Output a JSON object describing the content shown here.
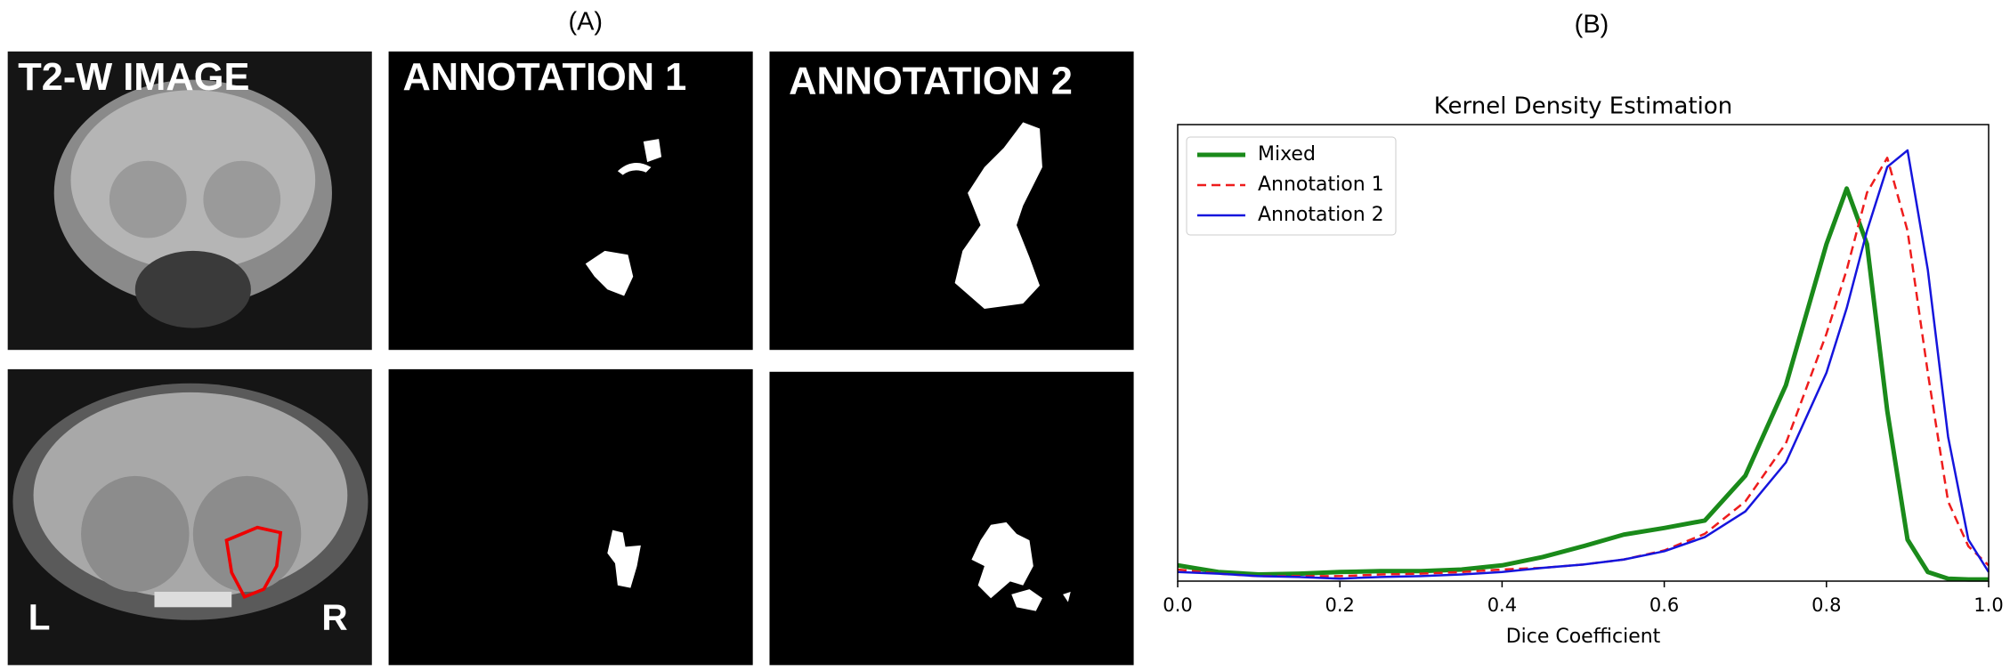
{
  "panel_a": {
    "label": "(A)",
    "columns": [
      "T2-W IMAGE",
      "ANNOTATION 1",
      "ANNOTATION 2"
    ],
    "orientation": [
      "L",
      "R"
    ]
  },
  "panel_b_label": "(B)",
  "chart_data": {
    "type": "line",
    "title": "Kernel Density Estimation",
    "x_label": "Dice Coefficient",
    "x": [
      0,
      0.05,
      0.1,
      0.15,
      0.2,
      0.25,
      0.3,
      0.35,
      0.4,
      0.45,
      0.5,
      0.55,
      0.6,
      0.65,
      0.7,
      0.75,
      0.8,
      0.825,
      0.85,
      0.875,
      0.9,
      0.925,
      0.95,
      0.975,
      1.0
    ],
    "series": [
      {
        "name": "Mixed",
        "color": "#1a8a1a",
        "linewidth": 5,
        "linestyle": "solid",
        "values": [
          0.19,
          0.11,
          0.08,
          0.09,
          0.11,
          0.12,
          0.12,
          0.14,
          0.19,
          0.29,
          0.42,
          0.56,
          0.64,
          0.73,
          1.27,
          2.36,
          4.06,
          4.73,
          4.06,
          2.05,
          0.5,
          0.11,
          0.03,
          0.02,
          0.02
        ]
      },
      {
        "name": "Annotation 1",
        "color": "#ee1c1c",
        "linewidth": 2.5,
        "linestyle": "dashed",
        "values": [
          0.14,
          0.09,
          0.06,
          0.06,
          0.06,
          0.08,
          0.09,
          0.11,
          0.14,
          0.16,
          0.2,
          0.26,
          0.37,
          0.57,
          0.96,
          1.66,
          2.98,
          3.75,
          4.68,
          5.1,
          4.22,
          2.51,
          0.96,
          0.42,
          0.19
        ]
      },
      {
        "name": "Annotation 2",
        "color": "#1515dd",
        "linewidth": 2.5,
        "linestyle": "solid",
        "values": [
          0.11,
          0.09,
          0.06,
          0.05,
          0.03,
          0.05,
          0.06,
          0.08,
          0.11,
          0.16,
          0.2,
          0.26,
          0.36,
          0.53,
          0.84,
          1.43,
          2.51,
          3.29,
          4.22,
          4.99,
          5.19,
          3.75,
          1.74,
          0.5,
          0.11
        ]
      }
    ],
    "xlim": [
      0,
      1.0
    ],
    "ylim": [
      0,
      5.5
    ],
    "xticks": [
      {
        "value": 0,
        "label": "0.0"
      },
      0.2,
      0.4,
      0.6,
      0.8,
      {
        "value": 1.0,
        "label": "1.0"
      }
    ],
    "legend": "upper left"
  }
}
